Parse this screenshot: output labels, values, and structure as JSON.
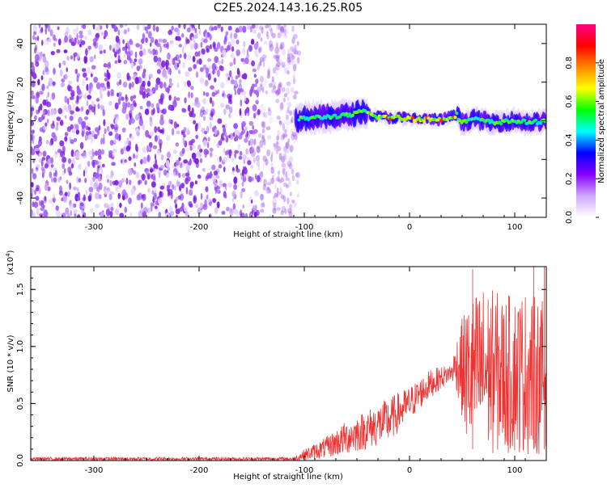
{
  "title": "C2E5.2024.143.16.25.R05",
  "chart_data": [
    {
      "type": "heatmap",
      "xlabel": "Height of straight line (km)",
      "ylabel": "Frequency (Hz)",
      "xlim": [
        -360,
        130
      ],
      "ylim": [
        -50,
        50
      ],
      "xticks": [
        -300,
        -200,
        -100,
        0,
        100
      ],
      "yticks": [
        -40,
        -20,
        0,
        20,
        40
      ],
      "ridge": [
        {
          "x": -105,
          "y": 1
        },
        {
          "x": -80,
          "y": 2
        },
        {
          "x": -55,
          "y": 3
        },
        {
          "x": -45,
          "y": 5
        },
        {
          "x": -30,
          "y": 2
        },
        {
          "x": -10,
          "y": 1.5
        },
        {
          "x": 10,
          "y": 1
        },
        {
          "x": 30,
          "y": 0.5
        },
        {
          "x": 45,
          "y": 3
        },
        {
          "x": 50,
          "y": -1
        },
        {
          "x": 60,
          "y": 1
        },
        {
          "x": 80,
          "y": -1
        },
        {
          "x": 100,
          "y": 0
        },
        {
          "x": 115,
          "y": -1
        },
        {
          "x": 130,
          "y": 0
        }
      ],
      "colorbar": {
        "label": "Normalized spectral amplitude",
        "range": [
          0,
          1
        ],
        "ticks": [
          0.0,
          0.2,
          0.4,
          0.6,
          0.8
        ],
        "colors": [
          "#ffffff",
          "#cfa8ff",
          "#8800ff",
          "#0000ff",
          "#00ffff",
          "#00ff00",
          "#ffff00",
          "#ff8800",
          "#ff0000",
          "#ff0088"
        ]
      }
    },
    {
      "type": "line",
      "xlabel": "Height of straight line (km)",
      "ylabel": "SNR (10 * v/v)",
      "y_multiplier": "(x10",
      "y_multiplier_exp": "4",
      "y_multiplier_close": ")",
      "xlim": [
        -360,
        130
      ],
      "ylim": [
        0,
        1.7
      ],
      "xticks": [
        -300,
        -200,
        -100,
        0,
        100
      ],
      "yticks": [
        "0.0",
        "0.5",
        "1.0",
        "1.5"
      ],
      "series": [
        {
          "color": "#ee3333",
          "envelope": [
            {
              "x": -360,
              "lo": 0.0,
              "hi": 0.03
            },
            {
              "x": -110,
              "lo": 0.0,
              "hi": 0.03
            },
            {
              "x": -100,
              "lo": 0.0,
              "hi": 0.1
            },
            {
              "x": -80,
              "lo": 0.02,
              "hi": 0.2
            },
            {
              "x": -60,
              "lo": 0.05,
              "hi": 0.35
            },
            {
              "x": -40,
              "lo": 0.1,
              "hi": 0.45
            },
            {
              "x": -20,
              "lo": 0.15,
              "hi": 0.55
            },
            {
              "x": 0,
              "lo": 0.35,
              "hi": 0.65
            },
            {
              "x": 20,
              "lo": 0.55,
              "hi": 0.8
            },
            {
              "x": 40,
              "lo": 0.7,
              "hi": 0.85
            },
            {
              "x": 45,
              "lo": 0.6,
              "hi": 1.1
            },
            {
              "x": 55,
              "lo": 0.1,
              "hi": 1.4
            },
            {
              "x": 70,
              "lo": 0.05,
              "hi": 1.55
            },
            {
              "x": 90,
              "lo": 0.05,
              "hi": 1.45
            },
            {
              "x": 110,
              "lo": 0.05,
              "hi": 1.5
            },
            {
              "x": 130,
              "lo": 0.05,
              "hi": 1.4
            }
          ],
          "peaks": [
            {
              "x": 60,
              "y": 1.68
            },
            {
              "x": 118,
              "y": 1.7
            },
            {
              "x": 128,
              "y": 1.7
            }
          ]
        }
      ]
    }
  ]
}
